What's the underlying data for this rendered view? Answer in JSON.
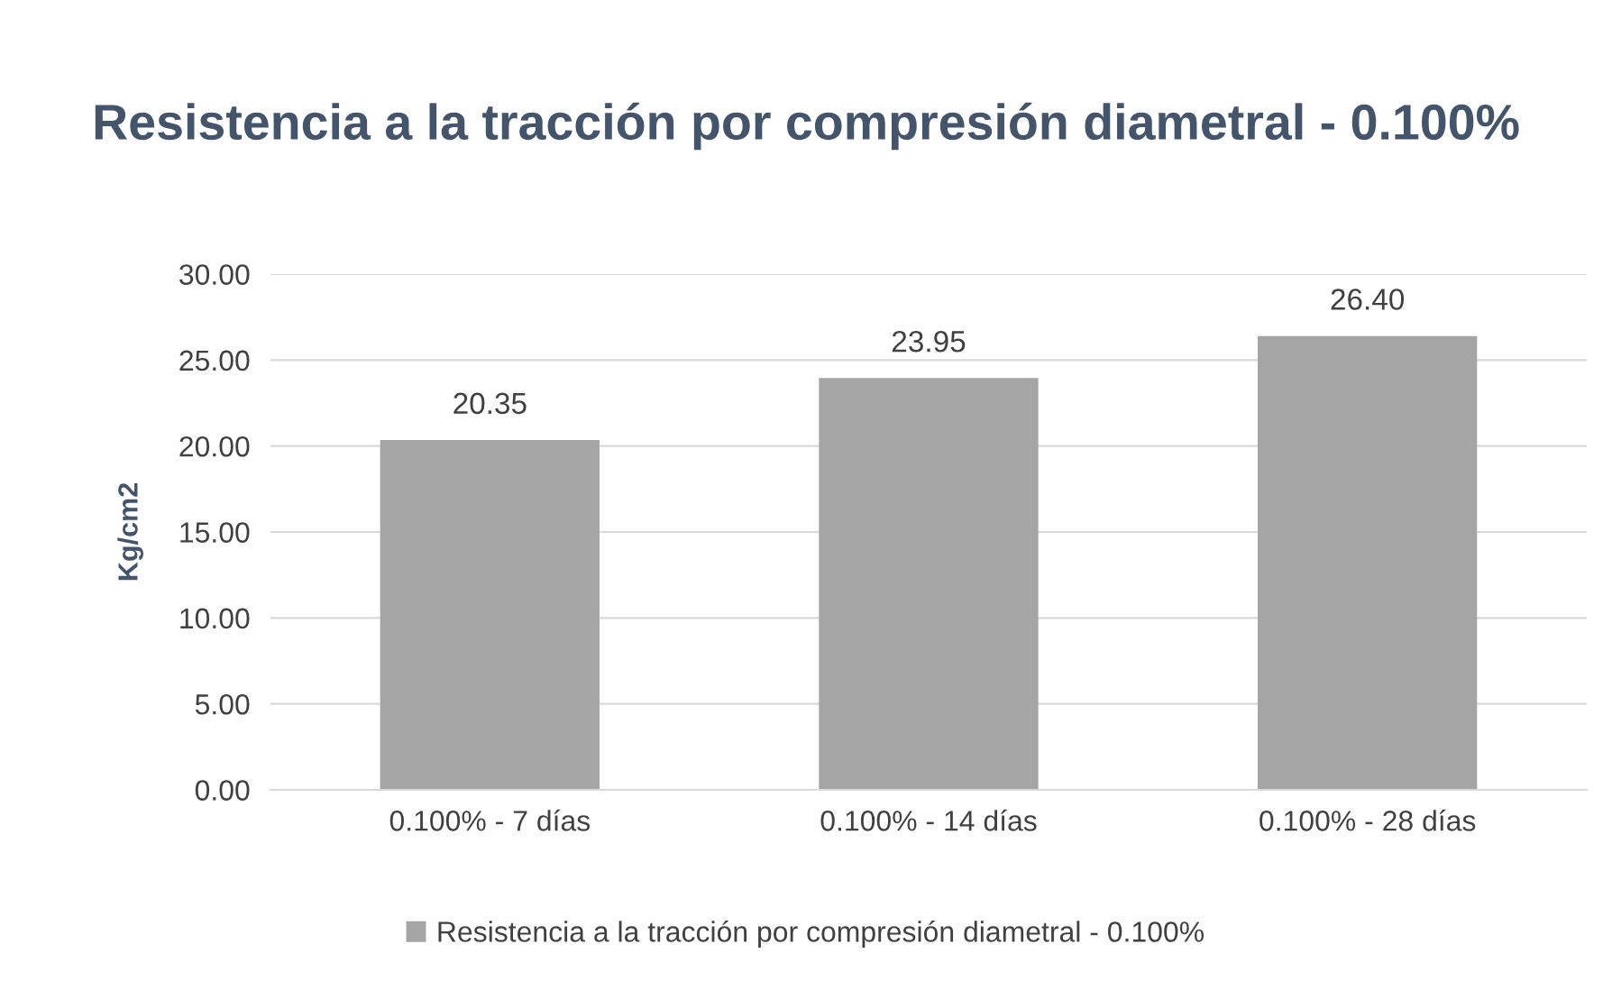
{
  "chart_data": {
    "type": "bar",
    "title": "Resistencia a la tracción por compresión diametral - 0.100%",
    "ylabel": "Kg/cm2",
    "categories": [
      "0.100% - 7 días",
      "0.100% - 14 días",
      "0.100% - 28 días"
    ],
    "series": [
      {
        "name": "Resistencia a la tracción por compresión diametral - 0.100%",
        "color": "#a5a5a5",
        "values": [
          20.35,
          23.95,
          26.4
        ]
      }
    ],
    "value_labels": [
      "20.35",
      "23.95",
      "26.40"
    ],
    "ylim": [
      0,
      30
    ],
    "yticks": [
      {
        "value": 0,
        "label": "0.00"
      },
      {
        "value": 5,
        "label": "5.00"
      },
      {
        "value": 10,
        "label": "10.00"
      },
      {
        "value": 15,
        "label": "15.00"
      },
      {
        "value": 20,
        "label": "20.00"
      },
      {
        "value": 25,
        "label": "25.00"
      },
      {
        "value": 30,
        "label": "30.00"
      }
    ],
    "grid": "y",
    "legend": "bottom"
  }
}
